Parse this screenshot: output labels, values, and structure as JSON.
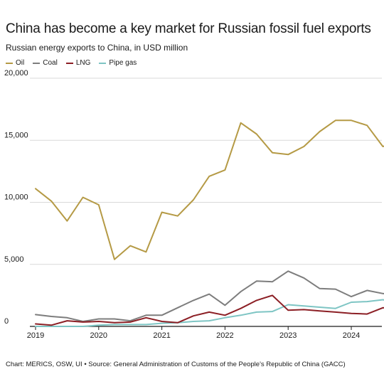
{
  "chart_data": {
    "type": "line",
    "title": "China has become a key market for Russian fossil fuel exports",
    "subtitle": "Russian energy exports to China, in USD million",
    "x": [
      "2019Q1",
      "2019Q2",
      "2019Q3",
      "2019Q4",
      "2020Q1",
      "2020Q2",
      "2020Q3",
      "2020Q4",
      "2021Q1",
      "2021Q2",
      "2021Q3",
      "2021Q4",
      "2022Q1",
      "2022Q2",
      "2022Q3",
      "2022Q4",
      "2023Q1",
      "2023Q2",
      "2023Q3",
      "2023Q4",
      "2024Q1",
      "2024Q2",
      "2024Q3",
      "2024Q4"
    ],
    "x_tick_labels": [
      "2019",
      "2020",
      "2021",
      "2022",
      "2023",
      "2024"
    ],
    "y_tick_labels": [
      "0",
      "5,000",
      "10,000",
      "15,000",
      "20,000"
    ],
    "ylim": [
      0,
      20000
    ],
    "grid": "horizontal",
    "legend_position": "top-left",
    "series": [
      {
        "name": "Oil",
        "color": "#b59a45",
        "values": [
          11100,
          10100,
          8500,
          10400,
          9800,
          5400,
          6500,
          6000,
          9200,
          8900,
          10200,
          12100,
          12600,
          16400,
          15500,
          14000,
          13850,
          14500,
          15700,
          16600,
          16600,
          16200,
          14500,
          14850
        ]
      },
      {
        "name": "Coal",
        "color": "#7d7d7d",
        "values": [
          950,
          800,
          700,
          400,
          600,
          600,
          450,
          900,
          900,
          1500,
          2100,
          2600,
          1700,
          2800,
          3650,
          3600,
          4450,
          3900,
          3050,
          3000,
          2400,
          2900,
          2650,
          2500
        ]
      },
      {
        "name": "LNG",
        "color": "#8c1f25",
        "values": [
          200,
          100,
          450,
          350,
          400,
          300,
          350,
          700,
          400,
          300,
          850,
          1150,
          900,
          1450,
          2100,
          2500,
          1300,
          1350,
          1250,
          1150,
          1050,
          1000,
          1500,
          1450
        ]
      },
      {
        "name": "Pipe gas",
        "color": "#7ec5c4",
        "values": [
          0,
          0,
          0,
          0,
          100,
          150,
          150,
          150,
          250,
          300,
          400,
          450,
          700,
          900,
          1150,
          1200,
          1750,
          1650,
          1550,
          1450,
          1950,
          2000,
          2150,
          1900
        ]
      }
    ]
  },
  "footer": "Chart: MERICS, OSW, UI • Source: General Administration of Customs of the People's Republic of China (GACC)"
}
